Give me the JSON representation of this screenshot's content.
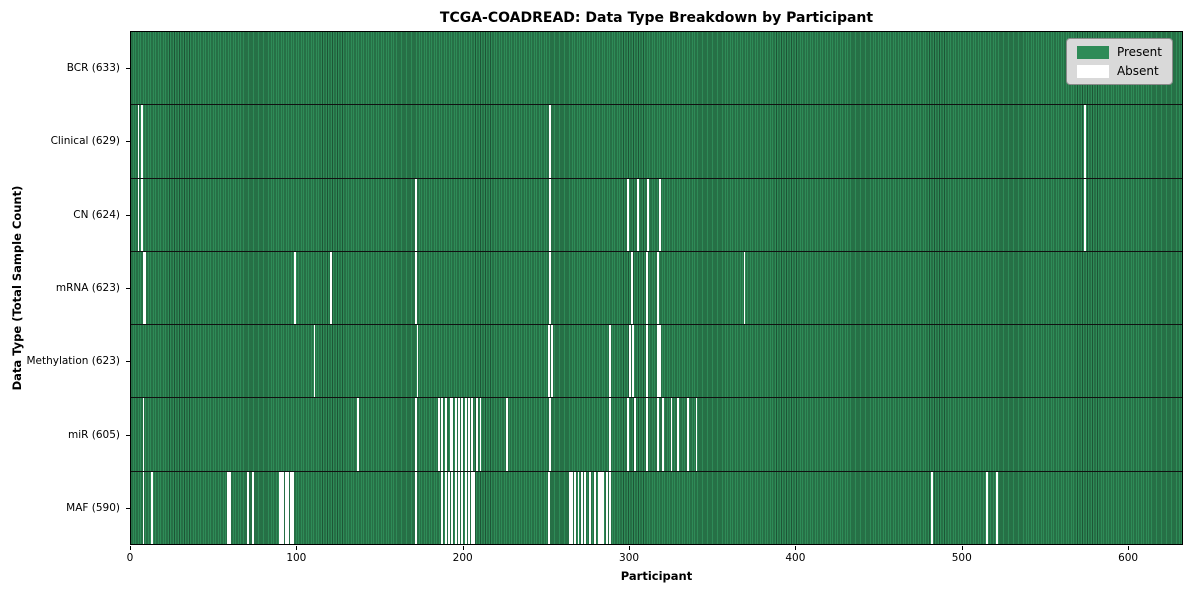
{
  "chart_data": {
    "type": "heatmap",
    "title": "TCGA-COADREAD: Data Type Breakdown by Participant",
    "xlabel": "Participant",
    "ylabel": "Data Type (Total Sample Count)",
    "x_ticks": [
      0,
      100,
      200,
      300,
      400,
      500,
      600
    ],
    "n_participants": 633,
    "grid": false,
    "legend_position": "upper right",
    "colors": {
      "present": "#2e8b57",
      "absent": "#ffffff",
      "row_separator": "#111111",
      "plot_border": "#000000",
      "legend_bg": "#d9d9d9",
      "legend_border": "#8a8a8a"
    },
    "legend": [
      {
        "label": "Present",
        "color": "#2e8b57"
      },
      {
        "label": "Absent",
        "color": "#ffffff"
      }
    ],
    "rows": [
      {
        "name": "BCR",
        "label": "BCR (633)",
        "count": 633,
        "absent": []
      },
      {
        "name": "Clinical",
        "label": "Clinical (629)",
        "count": 629,
        "absent": [
          4,
          6,
          252,
          574
        ]
      },
      {
        "name": "CN",
        "label": "CN (624)",
        "count": 624,
        "absent": [
          4,
          6,
          171,
          252,
          299,
          305,
          311,
          318,
          574
        ]
      },
      {
        "name": "mRNA",
        "label": "mRNA (623)",
        "count": 623,
        "absent": [
          7,
          8,
          98,
          120,
          171,
          252,
          301,
          310,
          317,
          369
        ]
      },
      {
        "name": "Methylation",
        "label": "Methylation (623)",
        "count": 623,
        "absent": [
          110,
          172,
          251,
          253,
          288,
          300,
          302,
          310,
          317,
          318
        ]
      },
      {
        "name": "miR",
        "label": "miR (605)",
        "count": 605,
        "absent": [
          7,
          136,
          171,
          185,
          187,
          189,
          192,
          193,
          195,
          197,
          199,
          201,
          203,
          205,
          208,
          210,
          226,
          252,
          288,
          299,
          303,
          310,
          317,
          320,
          325,
          329,
          335,
          340
        ]
      },
      {
        "name": "MAF",
        "label": "MAF (590)",
        "count": 590,
        "absent": [
          7,
          12,
          58,
          59,
          70,
          73,
          89,
          90,
          91,
          93,
          94,
          96,
          97,
          171,
          187,
          189,
          191,
          193,
          195,
          197,
          199,
          201,
          203,
          205,
          206,
          251,
          264,
          265,
          267,
          269,
          271,
          273,
          276,
          279,
          281,
          282,
          283,
          284,
          286,
          288,
          482,
          515,
          521
        ]
      }
    ]
  }
}
